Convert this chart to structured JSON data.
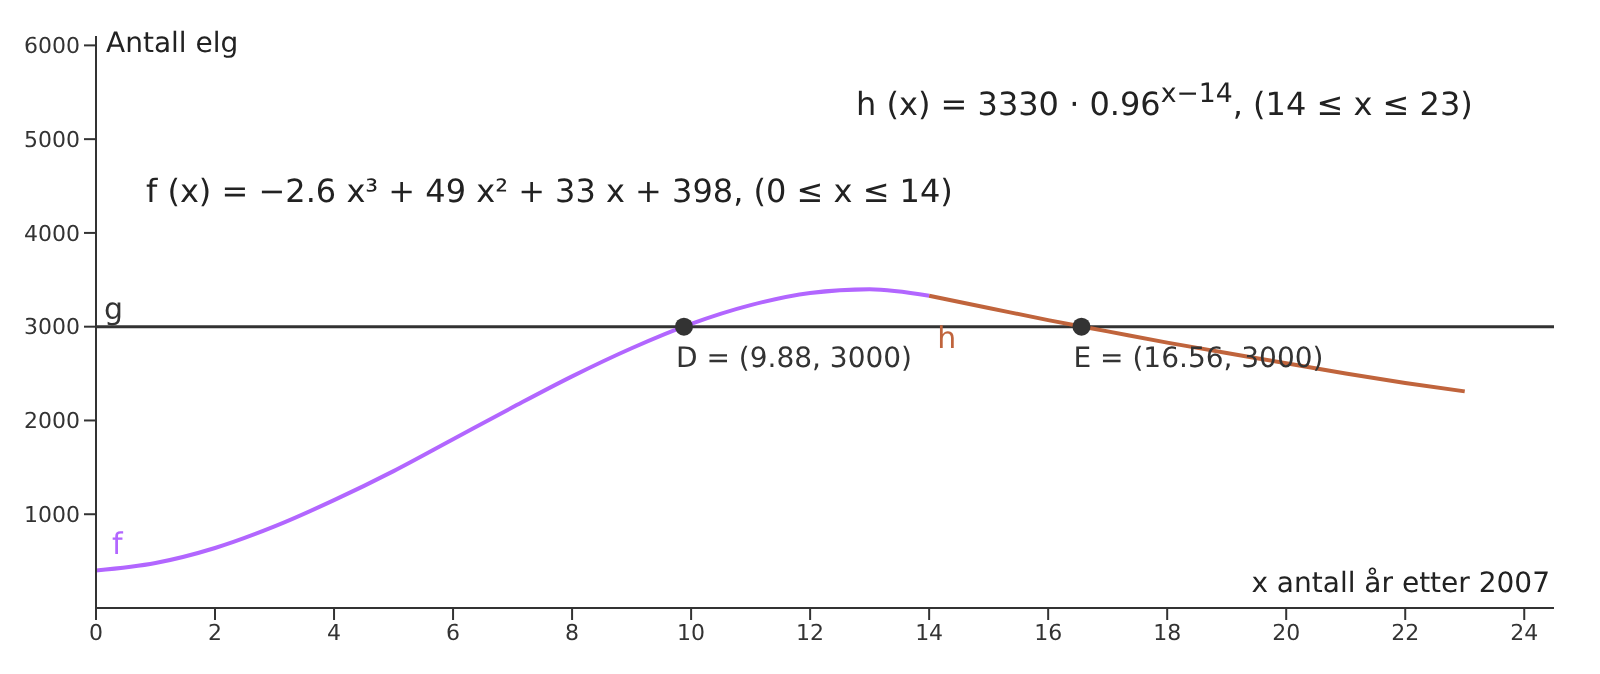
{
  "chart_data": {
    "type": "line",
    "xlabel": "x antall år etter 2007",
    "ylabel": "Antall elg",
    "xlim": [
      0,
      24.5
    ],
    "ylim": [
      0,
      6100
    ],
    "xticks": [
      0,
      2,
      4,
      6,
      8,
      10,
      12,
      14,
      16,
      18,
      20,
      22,
      24
    ],
    "yticks": [
      1000,
      2000,
      3000,
      4000,
      5000,
      6000
    ],
    "grid": false,
    "legend": false,
    "marker": "none",
    "line_style": "solid",
    "series": [
      {
        "name": "f",
        "color": "#b266ff",
        "x": [
          0,
          1,
          2,
          3,
          4,
          5,
          6,
          7,
          8,
          9,
          10,
          11,
          12,
          13,
          14
        ],
        "values": [
          400,
          480,
          640,
          870,
          1150,
          1460,
          1800,
          2140,
          2470,
          2770,
          3030,
          3230,
          3360,
          3400,
          3330
        ]
      },
      {
        "name": "h",
        "color": "#c0643c",
        "x": [
          14,
          15,
          16,
          17,
          18,
          19,
          20,
          21,
          22,
          23
        ],
        "values": [
          3330,
          3200,
          3070,
          2950,
          2830,
          2720,
          2610,
          2500,
          2400,
          2310
        ]
      },
      {
        "type": "scatter",
        "marker": "circle",
        "color": "#333333",
        "x": [
          9.88,
          16.56
        ],
        "values": [
          3000,
          3000
        ]
      }
    ],
    "ref_lines": [
      {
        "axis": "y",
        "value": 3000,
        "label": "g",
        "color": "#333333",
        "line_style": "solid"
      }
    ],
    "annotations": [
      "h (x) = 3330 · 0.96$^{x−14}$,    (14 ≤ x ≤ 23)",
      "f (x) = −2.6 x³ + 49 x² + 33 x + 398,    (0 ≤ x ≤ 14)",
      {
        "text": "D = (9.88, 3000)",
        "x": 9.88,
        "y": 3000
      },
      {
        "text": "E = (16.56, 3000)",
        "x": 16.56,
        "y": 3000
      }
    ]
  }
}
